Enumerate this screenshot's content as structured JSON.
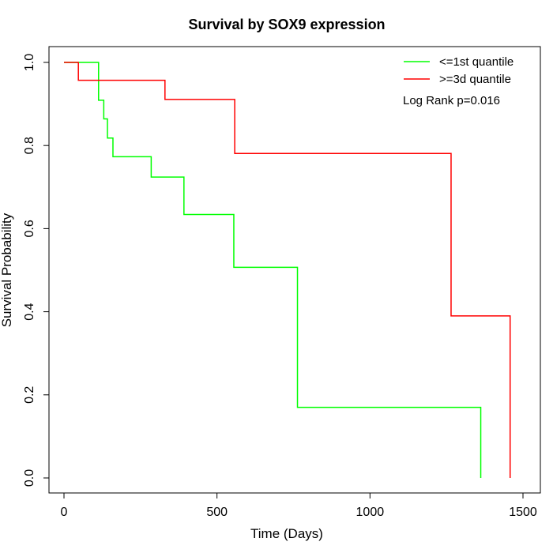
{
  "chart_data": {
    "type": "line",
    "title": "Survival by SOX9 expression",
    "xlabel": "Time (Days)",
    "ylabel": "Survival Probability",
    "xlim": [
      0,
      1500
    ],
    "ylim": [
      0,
      1
    ],
    "x_ticks": [
      0,
      500,
      1000,
      1500
    ],
    "y_ticks": [
      0.0,
      0.2,
      0.4,
      0.6,
      0.8,
      1.0
    ],
    "x_tick_labels": [
      "0",
      "500",
      "1000",
      "1500"
    ],
    "y_tick_labels": [
      "0.0",
      "0.2",
      "0.4",
      "0.6",
      "0.8",
      "1.0"
    ],
    "grid": false,
    "legend_position": "top-right",
    "annotation": "Log Rank p=0.016",
    "series": [
      {
        "name": "<=1st quantile",
        "color": "#00ff00",
        "step": true,
        "x": [
          0,
          105,
          113,
          130,
          142,
          160,
          285,
          392,
          555,
          763,
          763,
          1362,
          1362
        ],
        "y": [
          1.0,
          1.0,
          0.909,
          0.864,
          0.818,
          0.773,
          0.724,
          0.634,
          0.507,
          0.338,
          0.17,
          0.17,
          0.0
        ]
      },
      {
        "name": ">=3d quantile",
        "color": "#ff0000",
        "step": true,
        "x": [
          0,
          47,
          330,
          558,
          1265,
          1458,
          1458
        ],
        "y": [
          1.0,
          0.957,
          0.911,
          0.781,
          0.39,
          0.39,
          0.0
        ]
      }
    ]
  }
}
